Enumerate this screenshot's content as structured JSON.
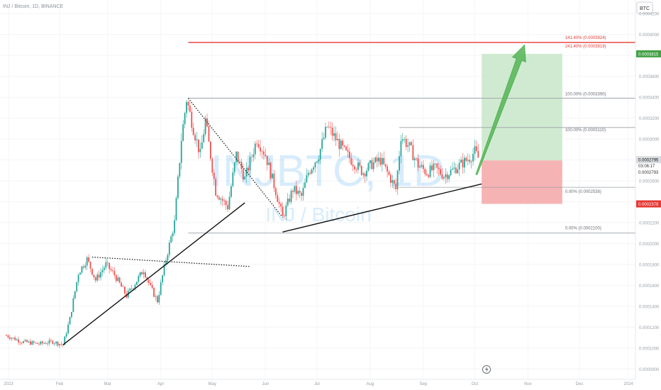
{
  "header": {
    "symbol_line": "INJ / Bitcoin, 1D, BINANCE"
  },
  "watermark": {
    "big": "INJBTC, 1D",
    "small": "INJ / Bitcoin"
  },
  "currency_badge": "BTC",
  "colors": {
    "up": "#26a69a",
    "down": "#ef5350",
    "accent_red": "#e53935",
    "target_box": "#c8e6c9",
    "stop_box": "#f4a6a6",
    "arrow": "#5cb85c",
    "fib_line": "#9aa0a6",
    "price_last": "#0a0a0a",
    "target_tag": "#43a047",
    "stop_tag": "#e53935"
  },
  "chart_data": {
    "type": "candlestick",
    "x_ticks": [
      "2023",
      "Feb",
      "Mar",
      "Apr",
      "May",
      "Jun",
      "Jul",
      "Aug",
      "Sep",
      "Oct",
      "Nov",
      "Dec",
      "2024"
    ],
    "y_ticks": [
      "0.0004200",
      "0.0004000",
      "0.0003800",
      "0.0003600",
      "0.0003400",
      "0.0003200",
      "0.0003000",
      "0.0002800",
      "0.0002600",
      "0.0002400",
      "0.0002200",
      "0.0002000",
      "0.0001800",
      "0.0001600",
      "0.0001400",
      "0.0001200",
      "0.0001000",
      "0.0000800"
    ],
    "ylim": [
      7e-05,
      0.000433
    ],
    "price_path": [
      [
        "2023-01-01",
        0.000112
      ],
      [
        "2023-01-10",
        0.000106
      ],
      [
        "2023-01-20",
        0.000104
      ],
      [
        "2023-01-28",
        0.000106
      ],
      [
        "2023-02-03",
        0.000103
      ],
      [
        "2023-02-07",
        0.000128
      ],
      [
        "2023-02-12",
        0.000172
      ],
      [
        "2023-02-17",
        0.000185
      ],
      [
        "2023-02-22",
        0.000165
      ],
      [
        "2023-02-28",
        0.00018
      ],
      [
        "2023-03-05",
        0.00017
      ],
      [
        "2023-03-12",
        0.00015
      ],
      [
        "2023-03-17",
        0.000162
      ],
      [
        "2023-03-22",
        0.000175
      ],
      [
        "2023-03-26",
        0.000158
      ],
      [
        "2023-03-30",
        0.000145
      ],
      [
        "2023-04-04",
        0.000185
      ],
      [
        "2023-04-09",
        0.00022
      ],
      [
        "2023-04-13",
        0.0003
      ],
      [
        "2023-04-16",
        0.000338
      ],
      [
        "2023-04-20",
        0.00031
      ],
      [
        "2023-04-24",
        0.000285
      ],
      [
        "2023-04-27",
        0.000318
      ],
      [
        "2023-05-03",
        0.00025
      ],
      [
        "2023-05-10",
        0.000235
      ],
      [
        "2023-05-15",
        0.000285
      ],
      [
        "2023-05-20",
        0.000262
      ],
      [
        "2023-05-27",
        0.0003
      ],
      [
        "2023-06-01",
        0.000285
      ],
      [
        "2023-06-07",
        0.00025
      ],
      [
        "2023-06-11",
        0.000225
      ],
      [
        "2023-06-17",
        0.000252
      ],
      [
        "2023-06-22",
        0.000245
      ],
      [
        "2023-06-26",
        0.000268
      ],
      [
        "2023-07-02",
        0.000285
      ],
      [
        "2023-07-07",
        0.000312
      ],
      [
        "2023-07-12",
        0.0003
      ],
      [
        "2023-07-17",
        0.000288
      ],
      [
        "2023-07-22",
        0.000278
      ],
      [
        "2023-07-28",
        0.000268
      ],
      [
        "2023-08-02",
        0.000276
      ],
      [
        "2023-08-07",
        0.00028
      ],
      [
        "2023-08-12",
        0.000265
      ],
      [
        "2023-08-16",
        0.000252
      ],
      [
        "2023-08-19",
        0.000303
      ],
      [
        "2023-08-24",
        0.000292
      ],
      [
        "2023-08-29",
        0.000275
      ],
      [
        "2023-09-03",
        0.000268
      ],
      [
        "2023-09-08",
        0.000272
      ],
      [
        "2023-09-13",
        0.000265
      ],
      [
        "2023-09-18",
        0.00027
      ],
      [
        "2023-09-23",
        0.000276
      ],
      [
        "2023-09-28",
        0.000282
      ],
      [
        "2023-10-01",
        0.000288
      ],
      [
        "2023-10-04",
        0.000279
      ]
    ],
    "visible_high_low": [
      [
        "2023-04-17",
        0.000339
      ],
      [
        "2023-06-12",
        0.00021
      ],
      [
        "2023-08-18",
        0.000311
      ],
      [
        "2023-08-16",
        0.0002538
      ]
    ]
  },
  "fib_labels": {
    "f141": "141.40% (0.0003924)",
    "f241": "241.40% (0.0003919)",
    "f100a": "100.00% (0.0003390)",
    "f100b": "100.00% (0.0003110)",
    "f0a": "0.00% (0.0002538)",
    "f0b": "0.00% (0.0002100)"
  },
  "fib_levels": {
    "f141": 0.0003924,
    "f100a": 0.000339,
    "f100b": 0.000311,
    "f0a": 0.0002538,
    "f0b": 0.00021
  },
  "position": {
    "entry": 0.0002795,
    "target": 0.0003815,
    "stop": 0.0002379
  },
  "price_tags": {
    "target": "0.0003815",
    "current": "0.0002795",
    "countdown": "03:06:17",
    "current2": "0.0002793",
    "stop": "0.0002379"
  }
}
